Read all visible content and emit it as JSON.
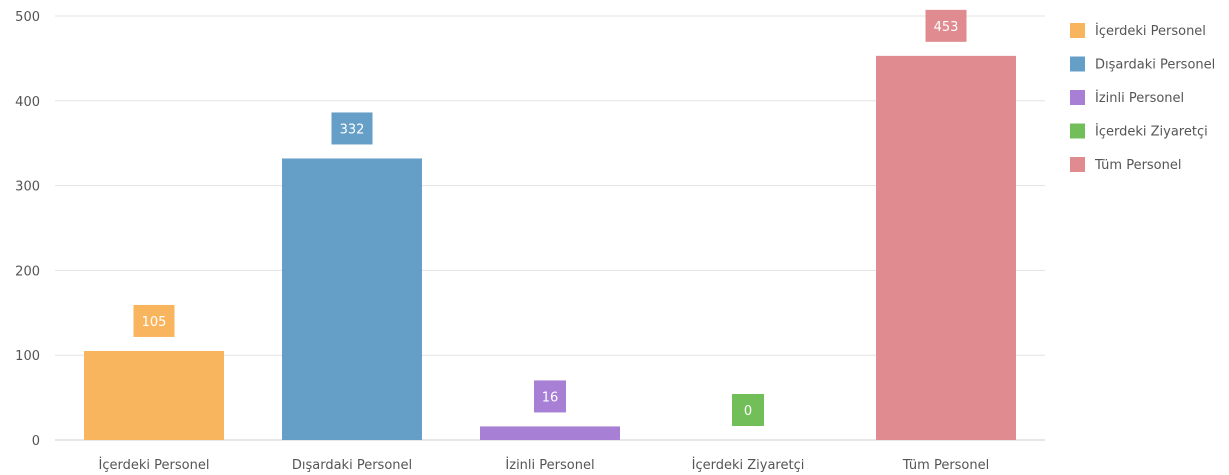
{
  "chart_data": {
    "type": "bar",
    "title": "",
    "xlabel": "",
    "ylabel": "",
    "ylim": [
      0,
      500
    ],
    "yticks": [
      0,
      100,
      200,
      300,
      400,
      500
    ],
    "grid": true,
    "legend_position": "right",
    "categories": [
      "İçerdeki Personel",
      "Dışardaki Personel",
      "İzinli Personel",
      "İçerdeki Ziyaretçi",
      "Tüm Personel"
    ],
    "values": [
      105,
      332,
      16,
      0,
      453
    ],
    "colors": [
      "#f9b55e",
      "#659fc8",
      "#a77fd4",
      "#72bf5a",
      "#df8b8f"
    ],
    "legend": [
      "İçerdeki Personel",
      "Dışardaki Personel",
      "İzinli Personel",
      "İçerdeki Ziyaretçi",
      "Tüm Personel"
    ]
  }
}
